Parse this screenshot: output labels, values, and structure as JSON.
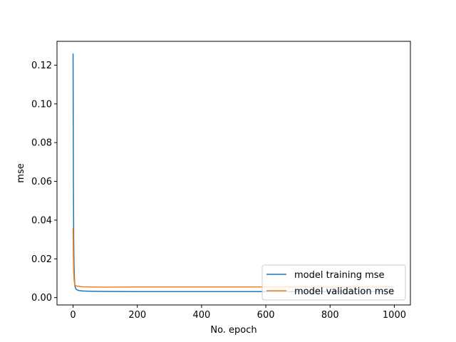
{
  "chart_data": {
    "type": "line",
    "title": "",
    "xlabel": "No. epoch",
    "ylabel": "mse",
    "xlim": [
      -50,
      1050
    ],
    "ylim": [
      -0.0038,
      0.1323
    ],
    "x_ticks": [
      0,
      200,
      400,
      600,
      800,
      1000
    ],
    "x_tick_labels": [
      "0",
      "200",
      "400",
      "600",
      "800",
      "1000"
    ],
    "y_ticks": [
      0.0,
      0.02,
      0.04,
      0.06,
      0.08,
      0.1,
      0.12
    ],
    "y_tick_labels": [
      "0.00",
      "0.02",
      "0.04",
      "0.06",
      "0.08",
      "0.10",
      "0.12"
    ],
    "grid": false,
    "legend_position": "lower-right",
    "series": [
      {
        "name": "model training mse",
        "color": "#1f77b4",
        "x": [
          0,
          1,
          2,
          3,
          4,
          5,
          6,
          8,
          10,
          15,
          20,
          30,
          50,
          100,
          200,
          400,
          600,
          800,
          1000
        ],
        "y": [
          0.126,
          0.06,
          0.03,
          0.017,
          0.011,
          0.0075,
          0.0058,
          0.0047,
          0.0042,
          0.0038,
          0.0036,
          0.0034,
          0.0033,
          0.0032,
          0.0031,
          0.0031,
          0.0031,
          0.0031,
          0.0031
        ]
      },
      {
        "name": "model validation mse",
        "color": "#ff7f0e",
        "x": [
          0,
          1,
          2,
          3,
          4,
          5,
          6,
          8,
          10,
          15,
          20,
          30,
          50,
          100,
          200,
          400,
          600,
          800,
          1000
        ],
        "y": [
          0.036,
          0.02,
          0.013,
          0.0095,
          0.008,
          0.0071,
          0.0066,
          0.0062,
          0.006,
          0.0058,
          0.0057,
          0.0056,
          0.0055,
          0.0054,
          0.0055,
          0.0055,
          0.0055,
          0.0055,
          0.0055
        ]
      }
    ]
  }
}
